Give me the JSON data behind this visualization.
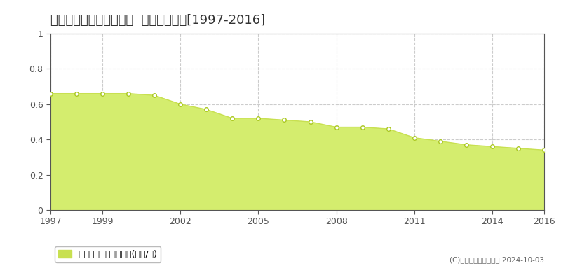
{
  "title": "空知郡南富良野町下金山  基準地価推移[1997-2016]",
  "years": [
    1997,
    1998,
    1999,
    2000,
    2001,
    2002,
    2003,
    2004,
    2005,
    2006,
    2007,
    2008,
    2009,
    2010,
    2011,
    2012,
    2013,
    2014,
    2015,
    2016
  ],
  "values": [
    0.66,
    0.66,
    0.66,
    0.66,
    0.65,
    0.6,
    0.57,
    0.52,
    0.52,
    0.51,
    0.5,
    0.47,
    0.47,
    0.46,
    0.41,
    0.39,
    0.37,
    0.36,
    0.35,
    0.34
  ],
  "ylim": [
    0,
    1.0
  ],
  "yticks": [
    0,
    0.2,
    0.4,
    0.6,
    0.8,
    1.0
  ],
  "ytick_labels": [
    "0",
    "0.2",
    "0.4",
    "0.6",
    "0.8",
    "1"
  ],
  "xticks": [
    1997,
    1999,
    2002,
    2005,
    2008,
    2011,
    2014,
    2016
  ],
  "fill_color": "#d4ed6e",
  "line_color": "#c8e050",
  "marker_facecolor": "#ffffff",
  "marker_edgecolor": "#aac820",
  "bg_color": "#ffffff",
  "plot_bg_color": "#ffffff",
  "grid_color": "#cccccc",
  "spine_color": "#555555",
  "tick_color": "#555555",
  "title_fontsize": 13,
  "tick_fontsize": 9,
  "legend_label": "基準地価  平均坪単価(万円/坪)",
  "legend_color": "#c8e050",
  "copyright_text": "(C)土地価格ドットコム 2024-10-03"
}
